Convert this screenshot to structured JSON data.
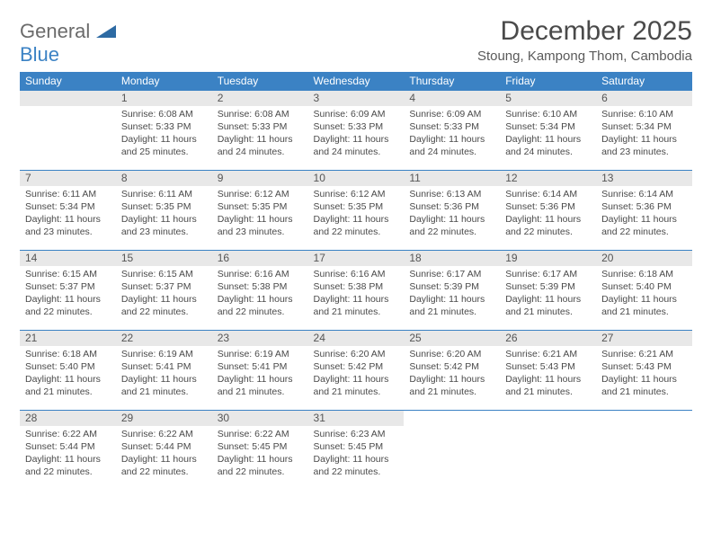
{
  "logo": {
    "general": "General",
    "blue": "Blue"
  },
  "title": "December 2025",
  "location": "Stoung, Kampong Thom, Cambodia",
  "colors": {
    "header_bg": "#3b82c4",
    "header_text": "#ffffff",
    "daynum_bg": "#e8e8e8",
    "border": "#3b82c4",
    "text": "#4a4a4a",
    "logo_gray": "#6b6b6b",
    "logo_blue": "#3b82c4"
  },
  "weekdays": [
    "Sunday",
    "Monday",
    "Tuesday",
    "Wednesday",
    "Thursday",
    "Friday",
    "Saturday"
  ],
  "weeks": [
    [
      {
        "num": "",
        "sunrise": "",
        "sunset": "",
        "daylight": ""
      },
      {
        "num": "1",
        "sunrise": "Sunrise: 6:08 AM",
        "sunset": "Sunset: 5:33 PM",
        "daylight": "Daylight: 11 hours and 25 minutes."
      },
      {
        "num": "2",
        "sunrise": "Sunrise: 6:08 AM",
        "sunset": "Sunset: 5:33 PM",
        "daylight": "Daylight: 11 hours and 24 minutes."
      },
      {
        "num": "3",
        "sunrise": "Sunrise: 6:09 AM",
        "sunset": "Sunset: 5:33 PM",
        "daylight": "Daylight: 11 hours and 24 minutes."
      },
      {
        "num": "4",
        "sunrise": "Sunrise: 6:09 AM",
        "sunset": "Sunset: 5:33 PM",
        "daylight": "Daylight: 11 hours and 24 minutes."
      },
      {
        "num": "5",
        "sunrise": "Sunrise: 6:10 AM",
        "sunset": "Sunset: 5:34 PM",
        "daylight": "Daylight: 11 hours and 24 minutes."
      },
      {
        "num": "6",
        "sunrise": "Sunrise: 6:10 AM",
        "sunset": "Sunset: 5:34 PM",
        "daylight": "Daylight: 11 hours and 23 minutes."
      }
    ],
    [
      {
        "num": "7",
        "sunrise": "Sunrise: 6:11 AM",
        "sunset": "Sunset: 5:34 PM",
        "daylight": "Daylight: 11 hours and 23 minutes."
      },
      {
        "num": "8",
        "sunrise": "Sunrise: 6:11 AM",
        "sunset": "Sunset: 5:35 PM",
        "daylight": "Daylight: 11 hours and 23 minutes."
      },
      {
        "num": "9",
        "sunrise": "Sunrise: 6:12 AM",
        "sunset": "Sunset: 5:35 PM",
        "daylight": "Daylight: 11 hours and 23 minutes."
      },
      {
        "num": "10",
        "sunrise": "Sunrise: 6:12 AM",
        "sunset": "Sunset: 5:35 PM",
        "daylight": "Daylight: 11 hours and 22 minutes."
      },
      {
        "num": "11",
        "sunrise": "Sunrise: 6:13 AM",
        "sunset": "Sunset: 5:36 PM",
        "daylight": "Daylight: 11 hours and 22 minutes."
      },
      {
        "num": "12",
        "sunrise": "Sunrise: 6:14 AM",
        "sunset": "Sunset: 5:36 PM",
        "daylight": "Daylight: 11 hours and 22 minutes."
      },
      {
        "num": "13",
        "sunrise": "Sunrise: 6:14 AM",
        "sunset": "Sunset: 5:36 PM",
        "daylight": "Daylight: 11 hours and 22 minutes."
      }
    ],
    [
      {
        "num": "14",
        "sunrise": "Sunrise: 6:15 AM",
        "sunset": "Sunset: 5:37 PM",
        "daylight": "Daylight: 11 hours and 22 minutes."
      },
      {
        "num": "15",
        "sunrise": "Sunrise: 6:15 AM",
        "sunset": "Sunset: 5:37 PM",
        "daylight": "Daylight: 11 hours and 22 minutes."
      },
      {
        "num": "16",
        "sunrise": "Sunrise: 6:16 AM",
        "sunset": "Sunset: 5:38 PM",
        "daylight": "Daylight: 11 hours and 22 minutes."
      },
      {
        "num": "17",
        "sunrise": "Sunrise: 6:16 AM",
        "sunset": "Sunset: 5:38 PM",
        "daylight": "Daylight: 11 hours and 21 minutes."
      },
      {
        "num": "18",
        "sunrise": "Sunrise: 6:17 AM",
        "sunset": "Sunset: 5:39 PM",
        "daylight": "Daylight: 11 hours and 21 minutes."
      },
      {
        "num": "19",
        "sunrise": "Sunrise: 6:17 AM",
        "sunset": "Sunset: 5:39 PM",
        "daylight": "Daylight: 11 hours and 21 minutes."
      },
      {
        "num": "20",
        "sunrise": "Sunrise: 6:18 AM",
        "sunset": "Sunset: 5:40 PM",
        "daylight": "Daylight: 11 hours and 21 minutes."
      }
    ],
    [
      {
        "num": "21",
        "sunrise": "Sunrise: 6:18 AM",
        "sunset": "Sunset: 5:40 PM",
        "daylight": "Daylight: 11 hours and 21 minutes."
      },
      {
        "num": "22",
        "sunrise": "Sunrise: 6:19 AM",
        "sunset": "Sunset: 5:41 PM",
        "daylight": "Daylight: 11 hours and 21 minutes."
      },
      {
        "num": "23",
        "sunrise": "Sunrise: 6:19 AM",
        "sunset": "Sunset: 5:41 PM",
        "daylight": "Daylight: 11 hours and 21 minutes."
      },
      {
        "num": "24",
        "sunrise": "Sunrise: 6:20 AM",
        "sunset": "Sunset: 5:42 PM",
        "daylight": "Daylight: 11 hours and 21 minutes."
      },
      {
        "num": "25",
        "sunrise": "Sunrise: 6:20 AM",
        "sunset": "Sunset: 5:42 PM",
        "daylight": "Daylight: 11 hours and 21 minutes."
      },
      {
        "num": "26",
        "sunrise": "Sunrise: 6:21 AM",
        "sunset": "Sunset: 5:43 PM",
        "daylight": "Daylight: 11 hours and 21 minutes."
      },
      {
        "num": "27",
        "sunrise": "Sunrise: 6:21 AM",
        "sunset": "Sunset: 5:43 PM",
        "daylight": "Daylight: 11 hours and 21 minutes."
      }
    ],
    [
      {
        "num": "28",
        "sunrise": "Sunrise: 6:22 AM",
        "sunset": "Sunset: 5:44 PM",
        "daylight": "Daylight: 11 hours and 22 minutes."
      },
      {
        "num": "29",
        "sunrise": "Sunrise: 6:22 AM",
        "sunset": "Sunset: 5:44 PM",
        "daylight": "Daylight: 11 hours and 22 minutes."
      },
      {
        "num": "30",
        "sunrise": "Sunrise: 6:22 AM",
        "sunset": "Sunset: 5:45 PM",
        "daylight": "Daylight: 11 hours and 22 minutes."
      },
      {
        "num": "31",
        "sunrise": "Sunrise: 6:23 AM",
        "sunset": "Sunset: 5:45 PM",
        "daylight": "Daylight: 11 hours and 22 minutes."
      },
      {
        "num": "",
        "sunrise": "",
        "sunset": "",
        "daylight": ""
      },
      {
        "num": "",
        "sunrise": "",
        "sunset": "",
        "daylight": ""
      },
      {
        "num": "",
        "sunrise": "",
        "sunset": "",
        "daylight": ""
      }
    ]
  ]
}
